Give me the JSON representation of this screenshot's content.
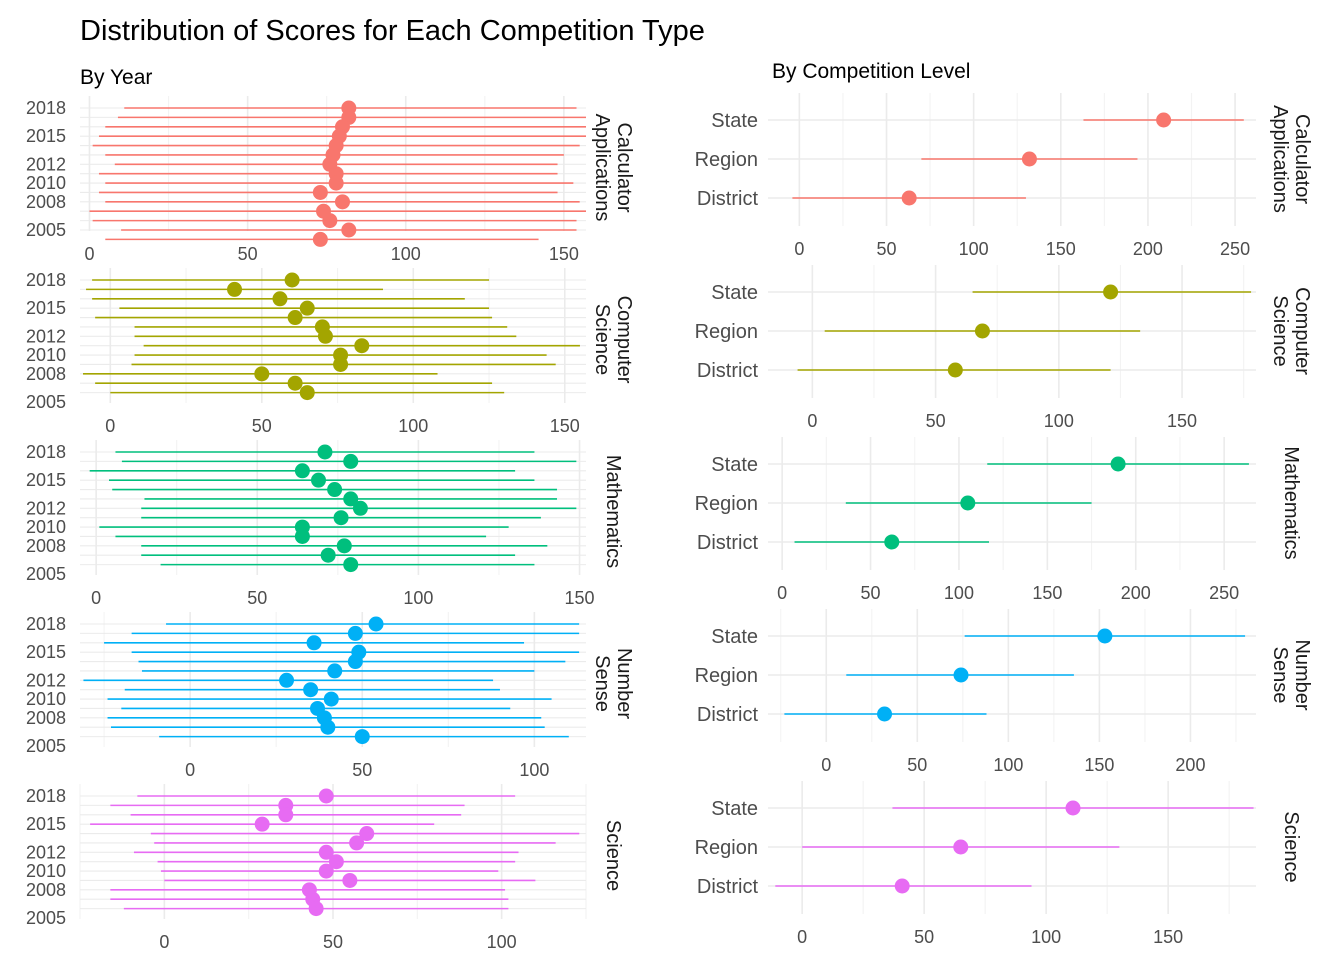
{
  "title": "Distribution of Scores for Each Competition Type",
  "colors": {
    "Calculator Applications": "#F8766D",
    "Computer Science": "#A3A500",
    "Mathematics": "#00BF7D",
    "Number Sense": "#00B0F6",
    "Science": "#E76BF3"
  },
  "chart_data": [
    {
      "type": "scatter",
      "title": "By Year",
      "facets": [
        {
          "name": "Calculator Applications",
          "strip_label": [
            "Calculator",
            "Applications"
          ],
          "y_tick_labels": [
            "2018",
            "2015",
            "2012",
            "2010",
            "2008",
            "2005"
          ],
          "xlim": [
            -3,
            157
          ],
          "x_ticks": [
            0,
            50,
            100,
            150
          ],
          "series": [
            {
              "year": 2018,
              "mean": 82,
              "low": 11,
              "high": 154
            },
            {
              "year": 2017,
              "mean": 82,
              "low": 9,
              "high": 157
            },
            {
              "year": 2016,
              "mean": 80,
              "low": 5,
              "high": 157
            },
            {
              "year": 2015,
              "mean": 79,
              "low": 3,
              "high": 157
            },
            {
              "year": 2014,
              "mean": 78,
              "low": 1,
              "high": 155
            },
            {
              "year": 2013,
              "mean": 77,
              "low": 5,
              "high": 150
            },
            {
              "year": 2012,
              "mean": 76,
              "low": 8,
              "high": 148
            },
            {
              "year": 2011,
              "mean": 78,
              "low": 3,
              "high": 148
            },
            {
              "year": 2010,
              "mean": 78,
              "low": 5,
              "high": 153
            },
            {
              "year": 2009,
              "mean": 73,
              "low": 3,
              "high": 148
            },
            {
              "year": 2008,
              "mean": 80,
              "low": 5,
              "high": 155
            },
            {
              "year": 2007,
              "mean": 74,
              "low": 0,
              "high": 157
            },
            {
              "year": 2006,
              "mean": 76,
              "low": 1,
              "high": 154
            },
            {
              "year": 2005,
              "mean": 82,
              "low": 10,
              "high": 154
            },
            {
              "year": 2004,
              "mean": 73,
              "low": 5,
              "high": 142
            }
          ]
        },
        {
          "name": "Computer Science",
          "strip_label": [
            "Computer",
            "Science"
          ],
          "y_tick_labels": [
            "2018",
            "2015",
            "2012",
            "2010",
            "2008",
            "2005"
          ],
          "xlim": [
            -10,
            157
          ],
          "x_ticks": [
            0,
            50,
            100,
            150
          ],
          "series": [
            {
              "year": 2018,
              "mean": 60,
              "low": -6,
              "high": 125
            },
            {
              "year": 2017,
              "mean": 41,
              "low": -8,
              "high": 90
            },
            {
              "year": 2016,
              "mean": 56,
              "low": -6,
              "high": 117
            },
            {
              "year": 2015,
              "mean": 65,
              "low": 3,
              "high": 125
            },
            {
              "year": 2014,
              "mean": 61,
              "low": -5,
              "high": 126
            },
            {
              "year": 2013,
              "mean": 70,
              "low": 8,
              "high": 131
            },
            {
              "year": 2012,
              "mean": 71,
              "low": 8,
              "high": 134
            },
            {
              "year": 2011,
              "mean": 83,
              "low": 11,
              "high": 155
            },
            {
              "year": 2010,
              "mean": 76,
              "low": 8,
              "high": 144
            },
            {
              "year": 2009,
              "mean": 76,
              "low": 7,
              "high": 147
            },
            {
              "year": 2008,
              "mean": 50,
              "low": -9,
              "high": 108
            },
            {
              "year": 2007,
              "mean": 61,
              "low": -5,
              "high": 126
            },
            {
              "year": 2006,
              "mean": 65,
              "low": 0,
              "high": 130
            }
          ]
        },
        {
          "name": "Mathematics",
          "strip_label": [
            "Mathematics"
          ],
          "y_tick_labels": [
            "2018",
            "2015",
            "2012",
            "2010",
            "2008",
            "2005"
          ],
          "xlim": [
            -5,
            152
          ],
          "x_ticks": [
            0,
            50,
            100,
            150
          ],
          "series": [
            {
              "year": 2018,
              "mean": 71,
              "low": 6,
              "high": 136
            },
            {
              "year": 2017,
              "mean": 79,
              "low": 8,
              "high": 149
            },
            {
              "year": 2016,
              "mean": 64,
              "low": -2,
              "high": 130
            },
            {
              "year": 2015,
              "mean": 69,
              "low": 4,
              "high": 136
            },
            {
              "year": 2014,
              "mean": 74,
              "low": 5,
              "high": 143
            },
            {
              "year": 2013,
              "mean": 79,
              "low": 15,
              "high": 143
            },
            {
              "year": 2012,
              "mean": 82,
              "low": 14,
              "high": 149
            },
            {
              "year": 2011,
              "mean": 76,
              "low": 14,
              "high": 138
            },
            {
              "year": 2010,
              "mean": 64,
              "low": 1,
              "high": 128
            },
            {
              "year": 2009,
              "mean": 64,
              "low": 6,
              "high": 121
            },
            {
              "year": 2008,
              "mean": 77,
              "low": 14,
              "high": 140
            },
            {
              "year": 2007,
              "mean": 72,
              "low": 14,
              "high": 130
            },
            {
              "year": 2006,
              "mean": 79,
              "low": 20,
              "high": 136
            }
          ]
        },
        {
          "name": "Number Sense",
          "strip_label": [
            "Number",
            "Sense"
          ],
          "y_tick_labels": [
            "2018",
            "2015",
            "2012",
            "2010",
            "2008",
            "2005"
          ],
          "xlim": [
            -32,
            115
          ],
          "x_ticks": [
            0,
            50,
            100
          ],
          "series": [
            {
              "year": 2018,
              "mean": 54,
              "low": -7,
              "high": 113
            },
            {
              "year": 2017,
              "mean": 48,
              "low": -17,
              "high": 113
            },
            {
              "year": 2016,
              "mean": 36,
              "low": -25,
              "high": 97
            },
            {
              "year": 2015,
              "mean": 49,
              "low": -17,
              "high": 113
            },
            {
              "year": 2014,
              "mean": 48,
              "low": -15,
              "high": 109
            },
            {
              "year": 2013,
              "mean": 42,
              "low": -14,
              "high": 100
            },
            {
              "year": 2012,
              "mean": 28,
              "low": -31,
              "high": 88
            },
            {
              "year": 2011,
              "mean": 35,
              "low": -19,
              "high": 90
            },
            {
              "year": 2010,
              "mean": 41,
              "low": -24,
              "high": 105
            },
            {
              "year": 2009,
              "mean": 37,
              "low": -20,
              "high": 93
            },
            {
              "year": 2008,
              "mean": 39,
              "low": -24,
              "high": 102
            },
            {
              "year": 2007,
              "mean": 40,
              "low": -23,
              "high": 103
            },
            {
              "year": 2006,
              "mean": 50,
              "low": -9,
              "high": 110
            }
          ]
        },
        {
          "name": "Science",
          "strip_label": [
            "Science"
          ],
          "y_tick_labels": [
            "2018",
            "2015",
            "2012",
            "2010",
            "2008",
            "2005"
          ],
          "xlim": [
            -25,
            125
          ],
          "x_ticks": [
            0,
            50,
            100
          ],
          "series": [
            {
              "year": 2018,
              "mean": 48,
              "low": -8,
              "high": 104
            },
            {
              "year": 2017,
              "mean": 36,
              "low": -16,
              "high": 89
            },
            {
              "year": 2016,
              "mean": 36,
              "low": -10,
              "high": 88
            },
            {
              "year": 2015,
              "mean": 29,
              "low": -22,
              "high": 80
            },
            {
              "year": 2014,
              "mean": 60,
              "low": -4,
              "high": 123
            },
            {
              "year": 2013,
              "mean": 57,
              "low": -3,
              "high": 116
            },
            {
              "year": 2012,
              "mean": 48,
              "low": -9,
              "high": 105
            },
            {
              "year": 2011,
              "mean": 51,
              "low": -2,
              "high": 104
            },
            {
              "year": 2010,
              "mean": 48,
              "low": -1,
              "high": 99
            },
            {
              "year": 2009,
              "mean": 55,
              "low": 0,
              "high": 110
            },
            {
              "year": 2008,
              "mean": 43,
              "low": -16,
              "high": 101
            },
            {
              "year": 2007,
              "mean": 44,
              "low": -16,
              "high": 102
            },
            {
              "year": 2006,
              "mean": 45,
              "low": -12,
              "high": 102
            }
          ]
        }
      ]
    },
    {
      "type": "scatter",
      "title": "By Competition Level",
      "facets": [
        {
          "name": "Calculator Applications",
          "strip_label": [
            "Calculator",
            "Applications"
          ],
          "categories": [
            "State",
            "Region",
            "District"
          ],
          "xlim": [
            -18,
            262
          ],
          "x_ticks": [
            0,
            50,
            100,
            150,
            200,
            250
          ],
          "series": [
            {
              "level": "State",
              "mean": 209,
              "low": 163,
              "high": 255
            },
            {
              "level": "Region",
              "mean": 132,
              "low": 70,
              "high": 194
            },
            {
              "level": "District",
              "mean": 63,
              "low": -4,
              "high": 130
            }
          ]
        },
        {
          "name": "Computer Science",
          "strip_label": [
            "Computer",
            "Science"
          ],
          "categories": [
            "State",
            "Region",
            "District"
          ],
          "xlim": [
            -18,
            180
          ],
          "x_ticks": [
            0,
            50,
            100,
            150
          ],
          "series": [
            {
              "level": "State",
              "mean": 121,
              "low": 65,
              "high": 178
            },
            {
              "level": "Region",
              "mean": 69,
              "low": 5,
              "high": 133
            },
            {
              "level": "District",
              "mean": 58,
              "low": -6,
              "high": 121
            }
          ]
        },
        {
          "name": "Mathematics",
          "strip_label": [
            "Mathematics"
          ],
          "categories": [
            "State",
            "Region",
            "District"
          ],
          "xlim": [
            -8,
            268
          ],
          "x_ticks": [
            0,
            50,
            100,
            150,
            200,
            250
          ],
          "series": [
            {
              "level": "State",
              "mean": 190,
              "low": 116,
              "high": 264
            },
            {
              "level": "Region",
              "mean": 105,
              "low": 36,
              "high": 175
            },
            {
              "level": "District",
              "mean": 62,
              "low": 7,
              "high": 117
            }
          ]
        },
        {
          "name": "Number Sense",
          "strip_label": [
            "Number",
            "Sense"
          ],
          "categories": [
            "State",
            "Region",
            "District"
          ],
          "xlim": [
            -32,
            236
          ],
          "x_ticks": [
            0,
            50,
            100,
            150,
            200
          ],
          "series": [
            {
              "level": "State",
              "mean": 153,
              "low": 76,
              "high": 230
            },
            {
              "level": "Region",
              "mean": 74,
              "low": 11,
              "high": 136
            },
            {
              "level": "District",
              "mean": 32,
              "low": -23,
              "high": 88
            }
          ]
        },
        {
          "name": "Science",
          "strip_label": [
            "Science"
          ],
          "categories": [
            "State",
            "Region",
            "District"
          ],
          "xlim": [
            -14,
            186
          ],
          "x_ticks": [
            0,
            50,
            100,
            150
          ],
          "series": [
            {
              "level": "State",
              "mean": 111,
              "low": 37,
              "high": 185
            },
            {
              "level": "Region",
              "mean": 65,
              "low": 0,
              "high": 130
            },
            {
              "level": "District",
              "mean": 41,
              "low": -11,
              "high": 94
            }
          ]
        }
      ]
    }
  ]
}
